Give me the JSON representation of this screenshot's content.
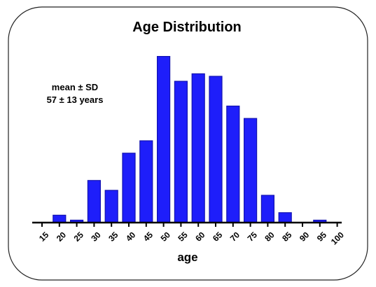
{
  "chart_data": {
    "type": "bar",
    "title": "Age Distribution",
    "annotation": [
      "mean ± SD",
      "57 ± 13 years"
    ],
    "xlabel": "age",
    "ylabel": "",
    "categories": [
      "15",
      "20",
      "25",
      "30",
      "35",
      "40",
      "45",
      "50",
      "55",
      "60",
      "65",
      "70",
      "75",
      "80",
      "85",
      "90",
      "95",
      "100"
    ],
    "values": [
      0,
      3,
      1,
      17,
      13,
      28,
      33,
      67,
      57,
      60,
      59,
      47,
      42,
      11,
      4,
      0,
      1,
      0
    ],
    "ylim": [
      0,
      70
    ],
    "grid": false,
    "legend": "none",
    "bar_color": "#1e1efa"
  }
}
